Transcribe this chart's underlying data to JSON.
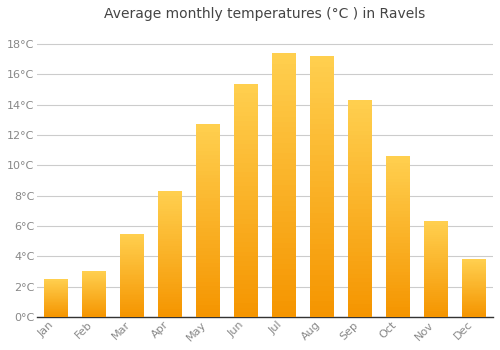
{
  "title": "Average monthly temperatures (°C ) in Ravels",
  "months": [
    "Jan",
    "Feb",
    "Mar",
    "Apr",
    "May",
    "Jun",
    "Jul",
    "Aug",
    "Sep",
    "Oct",
    "Nov",
    "Dec"
  ],
  "temperatures": [
    2.5,
    3.0,
    5.5,
    8.3,
    12.7,
    15.4,
    17.4,
    17.2,
    14.3,
    10.6,
    6.3,
    3.8
  ],
  "bar_color": "#FFA500",
  "bar_color_top": "#FFCC44",
  "background_color": "#ffffff",
  "grid_color": "#cccccc",
  "ylim": [
    0,
    19
  ],
  "yticks": [
    0,
    2,
    4,
    6,
    8,
    10,
    12,
    14,
    16,
    18
  ],
  "title_fontsize": 10,
  "tick_fontsize": 8,
  "tick_color": "#888888",
  "title_color": "#444444",
  "spine_color": "#333333",
  "font_family": "DejaVu Sans"
}
